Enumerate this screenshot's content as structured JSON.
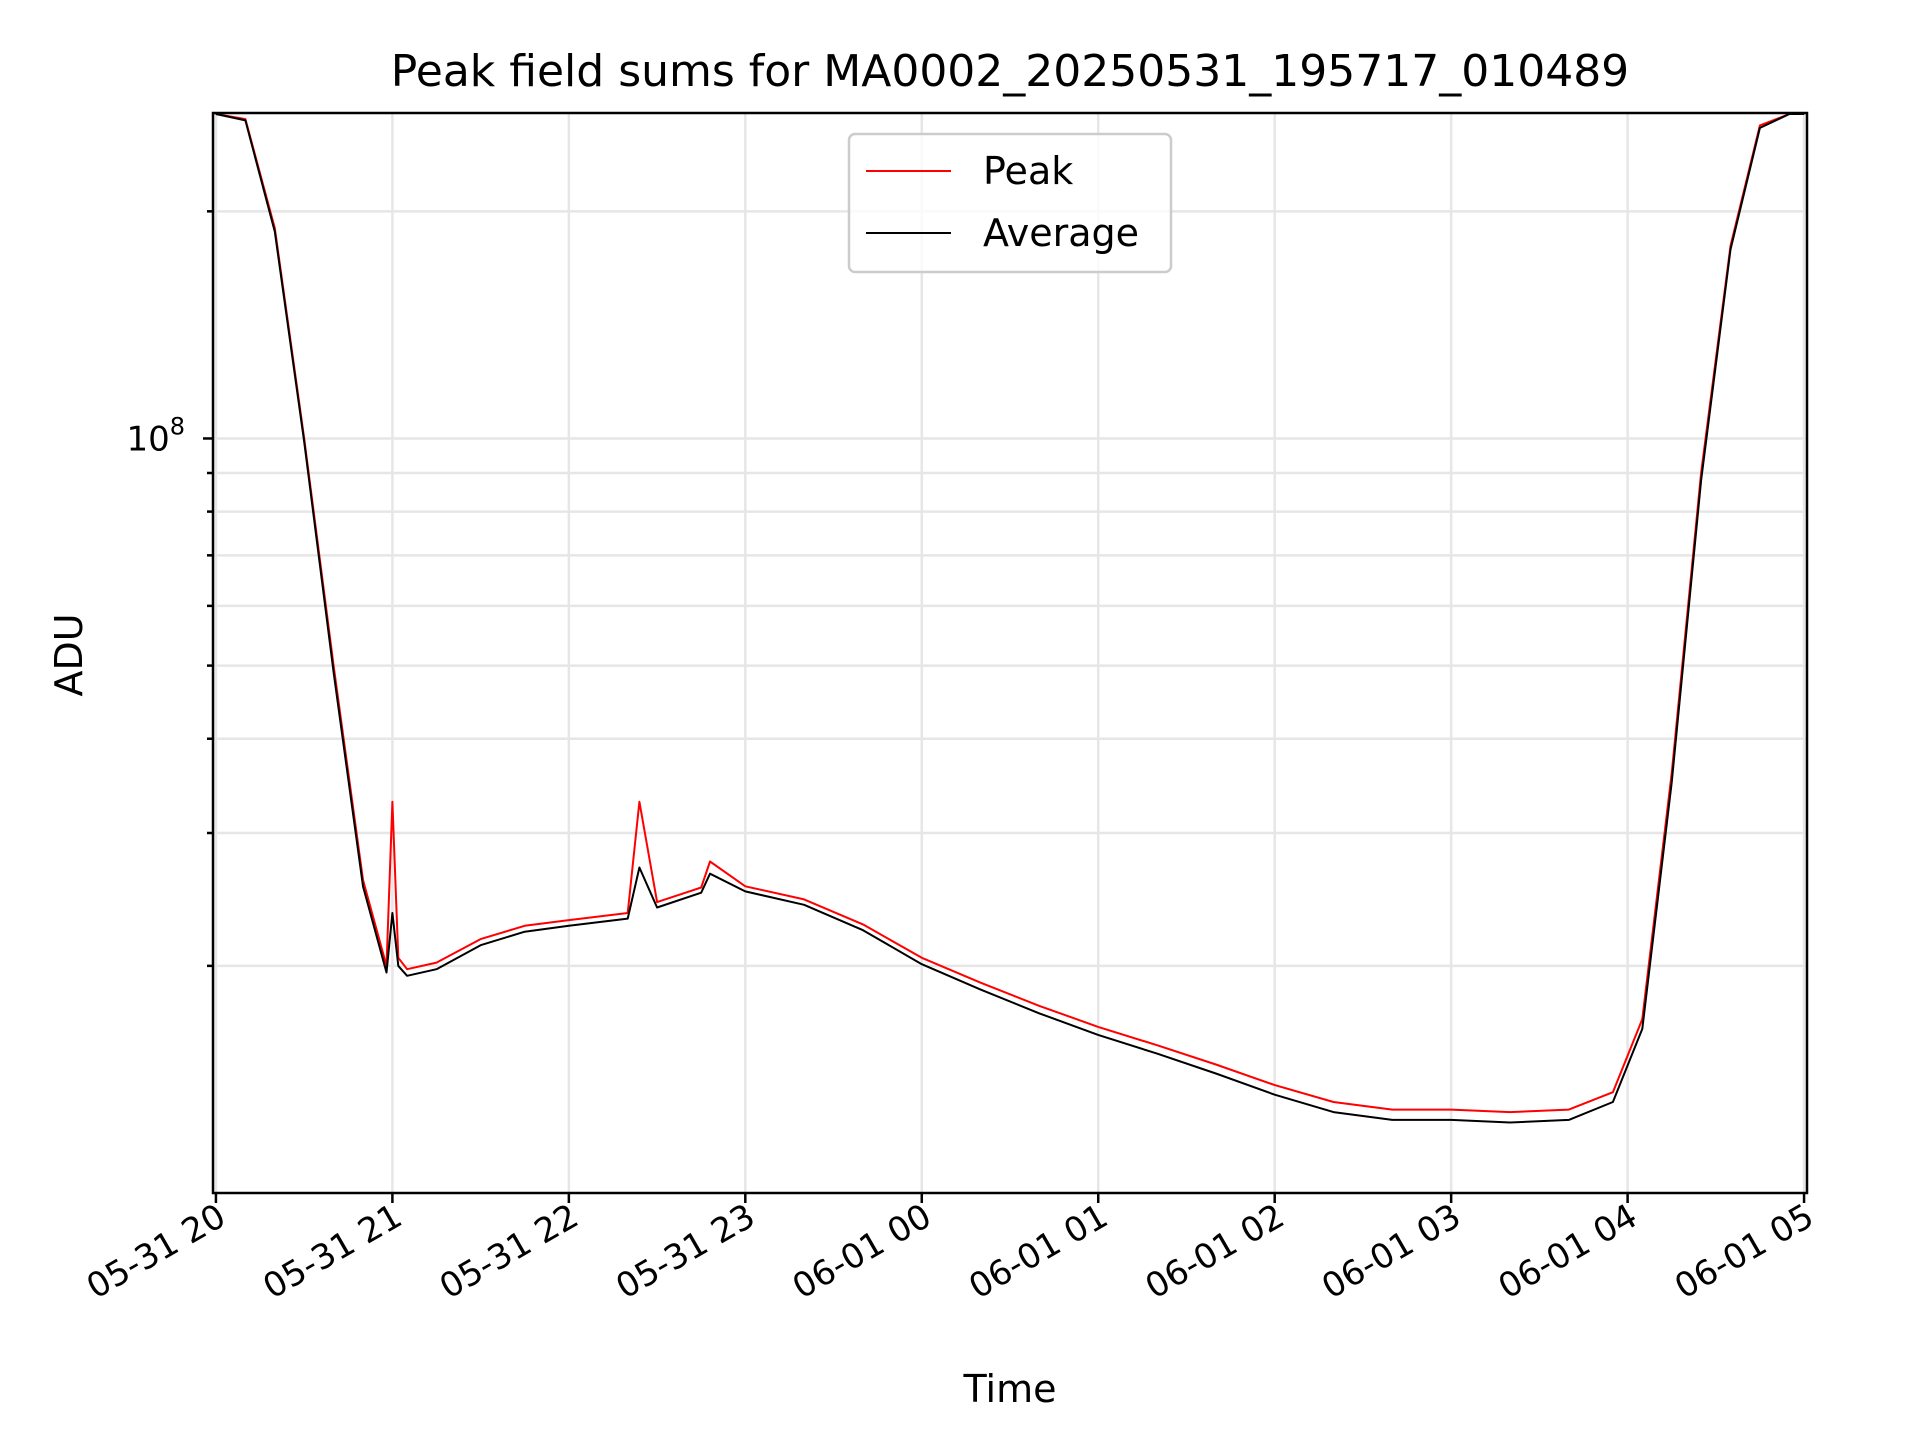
{
  "chart_data": {
    "type": "line",
    "title": "Peak field sums for MA0002_20250531_195717_010489",
    "xlabel": "Time",
    "ylabel": "ADU",
    "x_axis": "datetime",
    "xlim": [
      "2025-05-31 19:59",
      "2025-06-01 05:01"
    ],
    "x_ticks": [
      "05-31 20",
      "05-31 21",
      "05-31 22",
      "05-31 23",
      "06-01 00",
      "06-01 01",
      "06-01 02",
      "06-01 03",
      "06-01 04",
      "06-01 05"
    ],
    "y_scale": "log",
    "ylim": [
      10000000,
      270000000
    ],
    "y_major_tick_labels": [
      {
        "value": 100000000,
        "mantissa": "10",
        "exponent": "8"
      }
    ],
    "y_minor_ticks": [
      20000000,
      30000000,
      40000000,
      50000000,
      60000000,
      70000000,
      80000000,
      90000000,
      200000000
    ],
    "grid": true,
    "legend_position": "upper center",
    "series": [
      {
        "name": "Peak",
        "color": "#ff0000",
        "x": [
          "2025-05-31 20:00",
          "2025-05-31 20:10",
          "2025-05-31 20:20",
          "2025-05-31 20:30",
          "2025-05-31 20:40",
          "2025-05-31 20:50",
          "2025-05-31 20:58",
          "2025-05-31 21:00",
          "2025-05-31 21:02",
          "2025-05-31 21:05",
          "2025-05-31 21:15",
          "2025-05-31 21:30",
          "2025-05-31 21:45",
          "2025-05-31 22:00",
          "2025-05-31 22:20",
          "2025-05-31 22:24",
          "2025-05-31 22:30",
          "2025-05-31 22:45",
          "2025-05-31 22:48",
          "2025-05-31 23:00",
          "2025-05-31 23:20",
          "2025-05-31 23:40",
          "2025-06-01 00:00",
          "2025-06-01 00:20",
          "2025-06-01 00:40",
          "2025-06-01 01:00",
          "2025-06-01 01:20",
          "2025-06-01 01:40",
          "2025-06-01 02:00",
          "2025-06-01 02:20",
          "2025-06-01 02:40",
          "2025-06-01 03:00",
          "2025-06-01 03:20",
          "2025-06-01 03:40",
          "2025-06-01 03:55",
          "2025-06-01 04:05",
          "2025-06-01 04:15",
          "2025-06-01 04:25",
          "2025-06-01 04:35",
          "2025-06-01 04:45",
          "2025-06-01 04:55",
          "2025-06-01 05:00"
        ],
        "y": [
          270000000,
          265000000,
          190000000,
          100000000,
          50000000,
          26000000,
          20000000,
          33000000,
          20500000,
          19800000,
          20200000,
          21700000,
          22600000,
          23000000,
          23500000,
          33000000,
          24300000,
          25400000,
          27500000,
          25500000,
          24500000,
          22700000,
          20500000,
          19000000,
          17700000,
          16600000,
          15700000,
          14800000,
          13900000,
          13200000,
          12900000,
          12900000,
          12800000,
          12900000,
          13600000,
          17000000,
          36000000,
          90000000,
          180000000,
          260000000,
          270000000,
          270000000
        ]
      },
      {
        "name": "Average",
        "color": "#000000",
        "x": [
          "2025-05-31 20:00",
          "2025-05-31 20:10",
          "2025-05-31 20:20",
          "2025-05-31 20:30",
          "2025-05-31 20:40",
          "2025-05-31 20:50",
          "2025-05-31 20:58",
          "2025-05-31 21:00",
          "2025-05-31 21:02",
          "2025-05-31 21:05",
          "2025-05-31 21:15",
          "2025-05-31 21:30",
          "2025-05-31 21:45",
          "2025-05-31 22:00",
          "2025-05-31 22:20",
          "2025-05-31 22:24",
          "2025-05-31 22:30",
          "2025-05-31 22:45",
          "2025-05-31 22:48",
          "2025-05-31 23:00",
          "2025-05-31 23:20",
          "2025-05-31 23:40",
          "2025-06-01 00:00",
          "2025-06-01 00:20",
          "2025-06-01 00:40",
          "2025-06-01 01:00",
          "2025-06-01 01:20",
          "2025-06-01 01:40",
          "2025-06-01 02:00",
          "2025-06-01 02:20",
          "2025-06-01 02:40",
          "2025-06-01 03:00",
          "2025-06-01 03:20",
          "2025-06-01 03:40",
          "2025-06-01 03:55",
          "2025-06-01 04:05",
          "2025-06-01 04:15",
          "2025-06-01 04:25",
          "2025-06-01 04:35",
          "2025-06-01 04:45",
          "2025-06-01 04:55",
          "2025-06-01 05:00"
        ],
        "y": [
          270000000,
          264000000,
          188000000,
          99000000,
          49000000,
          25500000,
          19600000,
          23500000,
          20000000,
          19400000,
          19800000,
          21300000,
          22200000,
          22600000,
          23100000,
          27000000,
          23900000,
          25000000,
          26500000,
          25100000,
          24100000,
          22300000,
          20100000,
          18600000,
          17300000,
          16200000,
          15300000,
          14400000,
          13500000,
          12800000,
          12500000,
          12500000,
          12400000,
          12500000,
          13200000,
          16500000,
          35000000,
          88000000,
          178000000,
          258000000,
          270000000,
          270000000
        ]
      }
    ]
  }
}
